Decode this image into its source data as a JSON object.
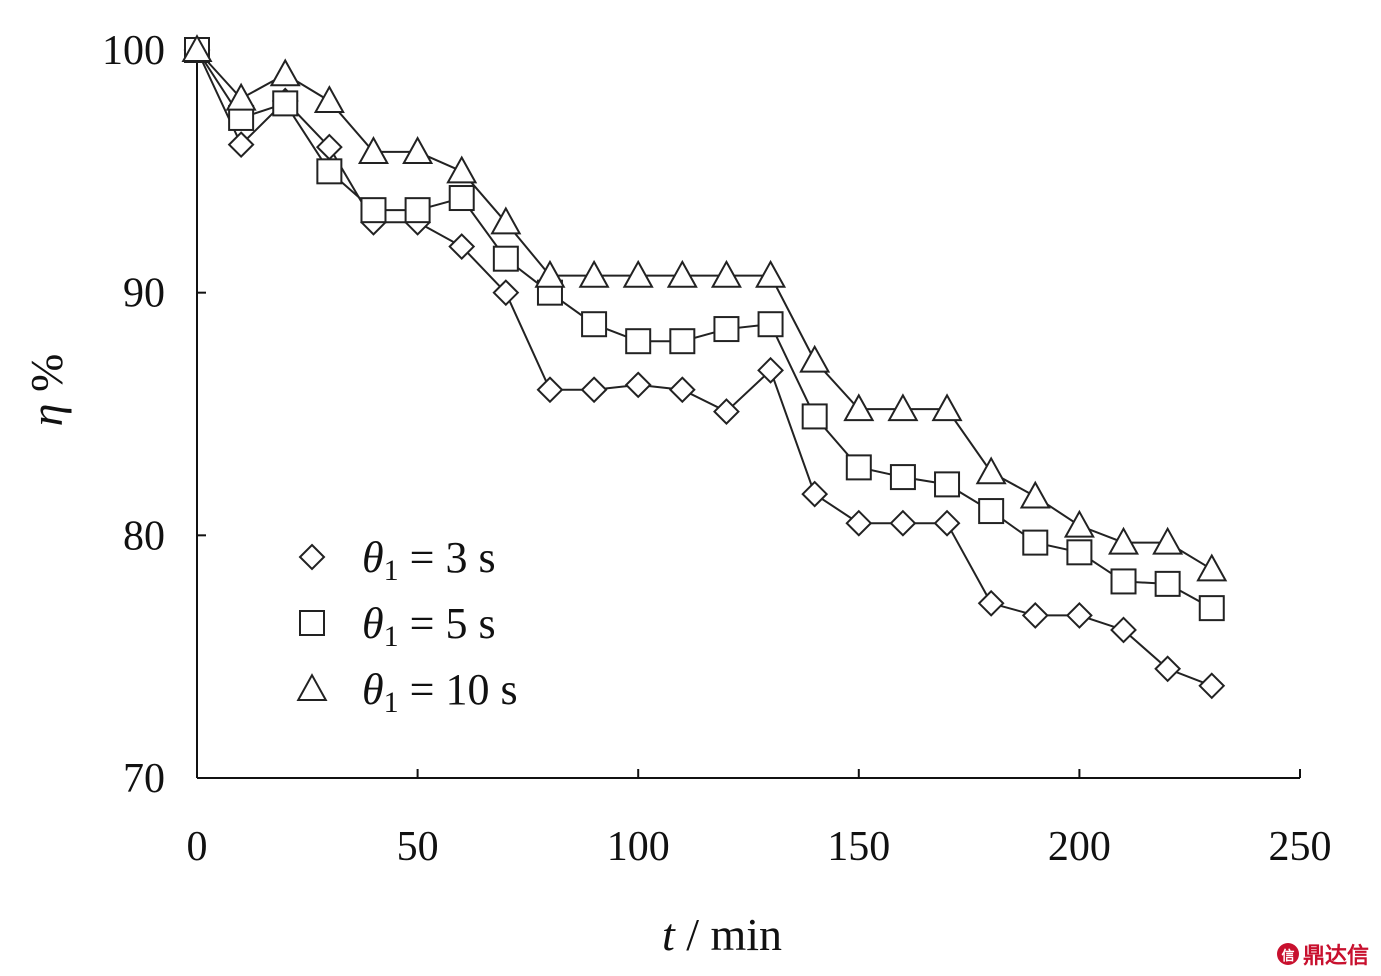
{
  "chart_data": {
    "type": "line",
    "title": "",
    "xlabel": {
      "var": "t",
      "unit": " / min"
    },
    "ylabel": {
      "var": "η",
      "unit": "%"
    },
    "xlim": [
      0,
      250
    ],
    "ylim": [
      70,
      100
    ],
    "x_ticks": [
      0,
      50,
      100,
      150,
      200,
      250
    ],
    "x_tick_labels": [
      "0",
      "50",
      "100",
      "150",
      "200",
      "250"
    ],
    "y_ticks": [
      70,
      80,
      90,
      100
    ],
    "y_tick_labels": [
      "70",
      "80",
      "90",
      "100"
    ],
    "grid": false,
    "legend_position": "bottom-left",
    "x": [
      0,
      10,
      20,
      30,
      40,
      50,
      60,
      70,
      80,
      90,
      100,
      110,
      120,
      130,
      140,
      150,
      160,
      170,
      180,
      190,
      200,
      210,
      220,
      230
    ],
    "series": [
      {
        "name": "θ1 = 3 s",
        "label_parts": [
          "θ",
          "1",
          " =  3 s"
        ],
        "marker": "diamond",
        "values": [
          100,
          96.1,
          97.9,
          96.0,
          92.9,
          92.9,
          91.9,
          90.0,
          86.0,
          86.0,
          86.2,
          86.0,
          85.1,
          86.8,
          81.7,
          80.5,
          80.5,
          80.5,
          77.2,
          76.7,
          76.7,
          76.1,
          74.5,
          73.8
        ]
      },
      {
        "name": "θ1 = 5 s",
        "label_parts": [
          "θ",
          "1",
          " =  5 s"
        ],
        "marker": "square",
        "values": [
          100,
          97.2,
          97.8,
          95.0,
          93.4,
          93.4,
          93.9,
          91.4,
          90.0,
          88.7,
          88.0,
          88.0,
          88.5,
          88.7,
          84.9,
          82.8,
          82.4,
          82.1,
          81.0,
          79.7,
          79.3,
          78.1,
          78.0,
          77.0
        ]
      },
      {
        "name": "θ1 = 10 s",
        "label_parts": [
          "θ",
          "1",
          " = 10 s"
        ],
        "marker": "triangle",
        "values": [
          100,
          98.0,
          99.0,
          97.9,
          95.8,
          95.8,
          95.0,
          92.9,
          90.7,
          90.7,
          90.7,
          90.7,
          90.7,
          90.7,
          87.2,
          85.2,
          85.2,
          85.2,
          82.6,
          81.6,
          80.4,
          79.7,
          79.7,
          78.6
        ]
      }
    ]
  },
  "watermark": {
    "text": "鼎达信",
    "logo": "信",
    "color": "#c8102e"
  }
}
